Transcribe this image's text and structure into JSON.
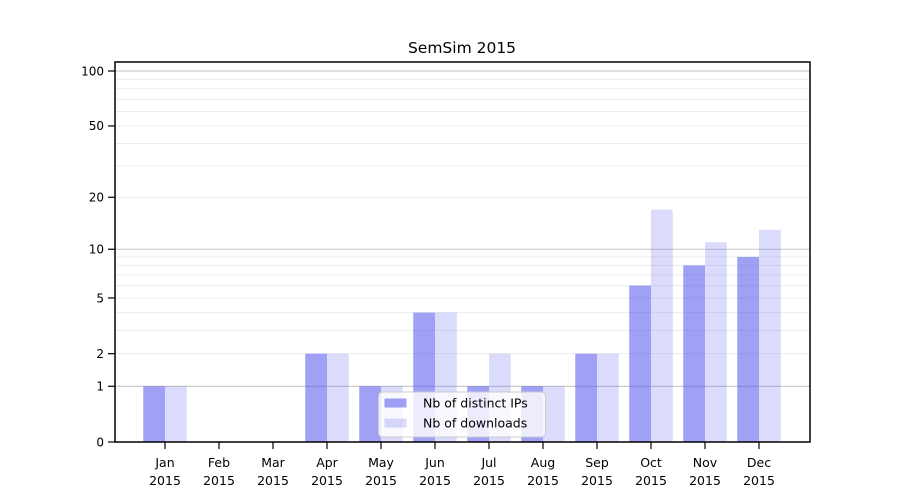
{
  "chart_data": {
    "type": "bar",
    "title": "SemSim 2015",
    "x_axis": {
      "months": [
        "Jan",
        "Feb",
        "Mar",
        "Apr",
        "May",
        "Jun",
        "Jul",
        "Aug",
        "Sep",
        "Oct",
        "Nov",
        "Dec"
      ],
      "year": "2015"
    },
    "series": [
      {
        "name": "Nb of distinct IPs",
        "fill": "rgba(88,88,235,0.57)",
        "values": [
          1,
          0,
          0,
          2,
          1,
          4,
          1,
          1,
          2,
          6,
          8,
          9
        ]
      },
      {
        "name": "Nb of downloads",
        "fill": "rgba(88,88,235,0.215)",
        "values": [
          1,
          0,
          0,
          2,
          1,
          4,
          2,
          1,
          2,
          17,
          11,
          13
        ]
      }
    ],
    "y_axis": {
      "scale": "log1p",
      "tick_values": [
        0,
        1,
        2,
        5,
        10,
        20,
        50,
        100
      ],
      "tick_labels": [
        "0",
        "1",
        "2",
        "5",
        "10",
        "20",
        "50",
        "100"
      ],
      "minor_gridlines": [
        2,
        3,
        4,
        5,
        6,
        7,
        8,
        9,
        20,
        30,
        40,
        50,
        60,
        70,
        80,
        90
      ],
      "major_gridlines": [
        1,
        10,
        100
      ],
      "ylim": [
        0,
        112
      ]
    },
    "legend": {
      "position": "lower center",
      "items": [
        "Nb of distinct IPs",
        "Nb of downloads"
      ]
    },
    "colors": {
      "background": "#ffffff",
      "minor_grid": "#ececec",
      "major_grid": "#c6c6c6",
      "spine": "#000000",
      "text": "#000000",
      "legend_border": "#cccccc",
      "legend_bg": "rgba(255,255,255,0.8)"
    },
    "grid": "horizontal-only"
  }
}
